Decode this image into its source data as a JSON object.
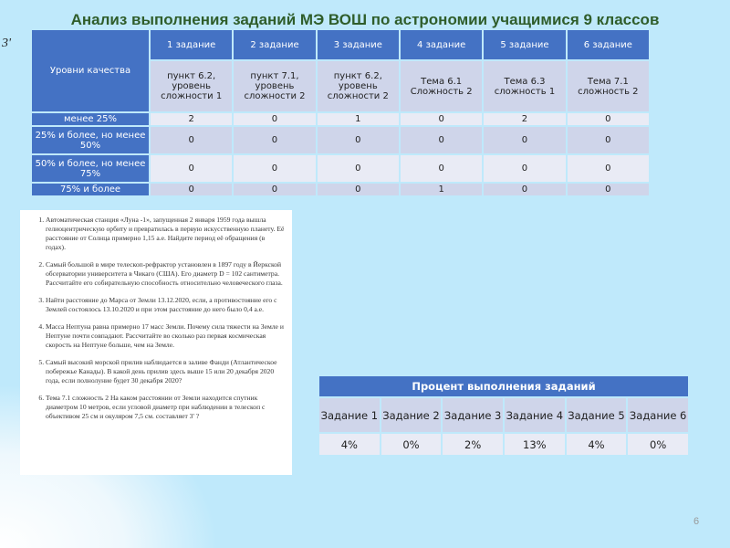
{
  "title": "Анализ выполнения заданий МЭ ВОШ по астрономии учащимися 9 классов",
  "side_mark": "3'",
  "quality_table": {
    "corner": "Уровни качества",
    "tasks": [
      "1 задание",
      "2 задание",
      "3 задание",
      "4 задание",
      "5 задание",
      "6 задание"
    ],
    "topics": [
      "пункт 6.2, уровень сложности 1",
      "пункт 7.1, уровень сложности 2",
      "пункт 6.2, уровень сложности 2",
      "Тема 6.1 Сложность 2",
      "Тема 6.3 сложность 1",
      "Тема 7.1 сложность 2"
    ],
    "rows": [
      {
        "label": "менее 25%",
        "values": [
          "2",
          "0",
          "1",
          "0",
          "2",
          "0"
        ]
      },
      {
        "label": "25% и более, но менее 50%",
        "values": [
          "0",
          "0",
          "0",
          "0",
          "0",
          "0"
        ]
      },
      {
        "label": "50% и более, но менее 75%",
        "values": [
          "0",
          "0",
          "0",
          "0",
          "0",
          "0"
        ]
      },
      {
        "label": "75% и более",
        "values": [
          "0",
          "0",
          "0",
          "1",
          "0",
          "0"
        ]
      }
    ]
  },
  "tasks_document": [
    "Автоматическая станция «Луна -1», запущенная 2 января 1959 года вышла гелиоцентрическую орбиту и превратилась в первую искусственную планету. Её расстояние от Солнца примерно 1,15 а.е. Найдите период её обращения (в годах).",
    "Самый большой в мире телескоп-рефрактор установлен в 1897 году в Йеркской обсерватории университета в Чикаго (США). Его диаметр D = 102 сантиметра. Рассчитайте его собирательную способность относительно человеческого глаза.",
    "Найти расстояние до Марса от Земли 13.12.2020, если, а противостояние его с Землей состоялось 13.10.2020 и при этом расстояние до него было 0,4 а.е.",
    "Масса Нептуна равна примерно 17 масс Земли. Почему сила тяжести на Земле и Нептуне почти совпадают. Рассчитайте во сколько раз первая космическая скорость на Нептуне больше, чем на Земле.",
    "Самый высокий морской прилив наблюдается в заливе Фанди (Атлантическое побережье Канады). В какой день прилив здесь выше 15 или 20 декабря 2020 года, если полнолуние будет 30 декабря 2020?",
    "Тема 7.1 сложность 2 На каком расстоянии от Земли находится спутник диаметром 10 метров, если угловой диаметр при наблюдении в телескоп с объективом 25 см и окуляром 7,5 см. составляет 3' ?"
  ],
  "percent_table": {
    "title": "Процент выполнения заданий",
    "headers": [
      "Задание 1",
      "Задание 2",
      "Задание 3",
      "Задание 4",
      "Задание 5",
      "Задание 6"
    ],
    "values": [
      "4%",
      "0%",
      "2%",
      "13%",
      "4%",
      "0%"
    ]
  },
  "page_number": "6"
}
